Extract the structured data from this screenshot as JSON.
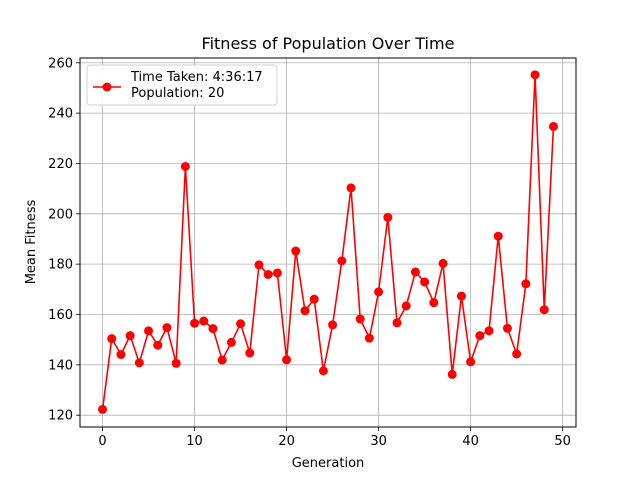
{
  "chart_data": {
    "type": "line",
    "title": "Fitness of Population Over Time",
    "xlabel": "Generation",
    "ylabel": "Mean Fitness",
    "xlim": [
      -2.45,
      51.45
    ],
    "ylim": [
      115.3,
      261.9
    ],
    "xticks": [
      0,
      10,
      20,
      30,
      40,
      50
    ],
    "yticks": [
      120,
      140,
      160,
      180,
      200,
      220,
      240,
      260
    ],
    "grid": true,
    "legend_position": "top-left",
    "legend": [
      "Time Taken: 4:36:17",
      "Population: 20"
    ],
    "series": [
      {
        "color": "#ff0000",
        "marker": "circle",
        "x": [
          0,
          1,
          2,
          3,
          4,
          5,
          6,
          7,
          8,
          9,
          10,
          11,
          12,
          13,
          14,
          15,
          16,
          17,
          18,
          19,
          20,
          21,
          22,
          23,
          24,
          25,
          26,
          27,
          28,
          29,
          30,
          31,
          32,
          33,
          34,
          35,
          36,
          37,
          38,
          39,
          40,
          41,
          42,
          43,
          44,
          45,
          46,
          47,
          48,
          49
        ],
        "y": [
          122.3,
          150.4,
          144.1,
          151.6,
          140.8,
          153.5,
          147.8,
          154.8,
          140.6,
          218.8,
          156.5,
          157.4,
          154.4,
          141.9,
          148.9,
          156.3,
          144.7,
          179.7,
          175.9,
          176.5,
          142.0,
          185.2,
          161.5,
          166.1,
          137.6,
          155.9,
          181.3,
          210.3,
          158.2,
          150.6,
          169.0,
          198.6,
          156.7,
          163.4,
          176.9,
          172.9,
          164.7,
          180.3,
          136.2,
          167.3,
          141.2,
          151.6,
          153.5,
          191.1,
          154.5,
          144.3,
          172.2,
          255.2,
          161.9,
          234.7
        ]
      }
    ]
  }
}
